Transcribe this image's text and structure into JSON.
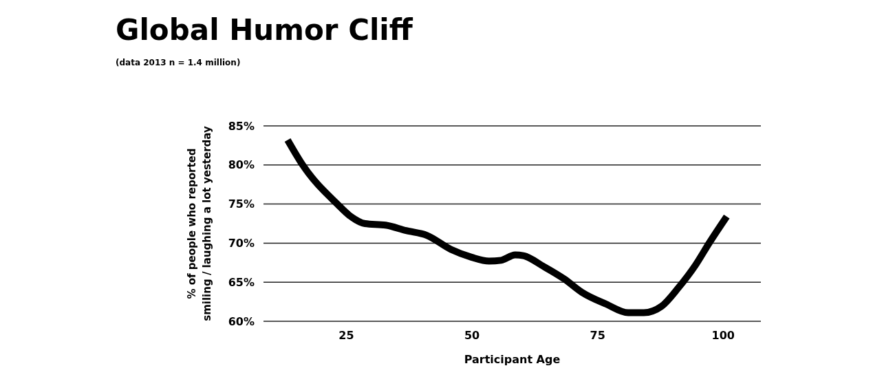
{
  "chart_data": {
    "type": "line",
    "title": "Global Humor Cliff",
    "subtitle": "(data 2013 n = 1.4 million)",
    "xlabel": "Participant Age",
    "ylabel": "% of people who reported\nsmiling / laughing a lot yesterday",
    "x": [
      13.3,
      16.3,
      23.2,
      25.9,
      28.7,
      32.8,
      36.9,
      41.0,
      45.8,
      49.9,
      53.4,
      55.8,
      58.6,
      60.2,
      64.3,
      68.4,
      71.9,
      76.7,
      81.1,
      84.2,
      87.7,
      91.1,
      94.5,
      97.3,
      100.7
    ],
    "series": [
      {
        "color": "#000000",
        "values": [
          83.2,
          80,
          75,
          73.4,
          72.5,
          72.3,
          71.6,
          71.0,
          69.2,
          68.2,
          67.7,
          67.8,
          68.5,
          68.4,
          67.0,
          65.4,
          63.7,
          62.2,
          61.1,
          61.1,
          61.9,
          64.3,
          67.2,
          70.1,
          73.4
        ]
      }
    ],
    "xlim": [
      8.5,
      107.5
    ],
    "xticks": [
      25,
      50,
      75,
      100
    ],
    "ylim": [
      60,
      85
    ],
    "yticks": [
      {
        "value": 60,
        "label": "60%"
      },
      {
        "value": 65,
        "label": "65%"
      },
      {
        "value": 70,
        "label": "70%"
      },
      {
        "value": 75,
        "label": "75%"
      },
      {
        "value": 80,
        "label": "80%"
      },
      {
        "value": 85,
        "label": "85%"
      }
    ],
    "grid": "y",
    "marker": "none",
    "line_style": "solid"
  }
}
